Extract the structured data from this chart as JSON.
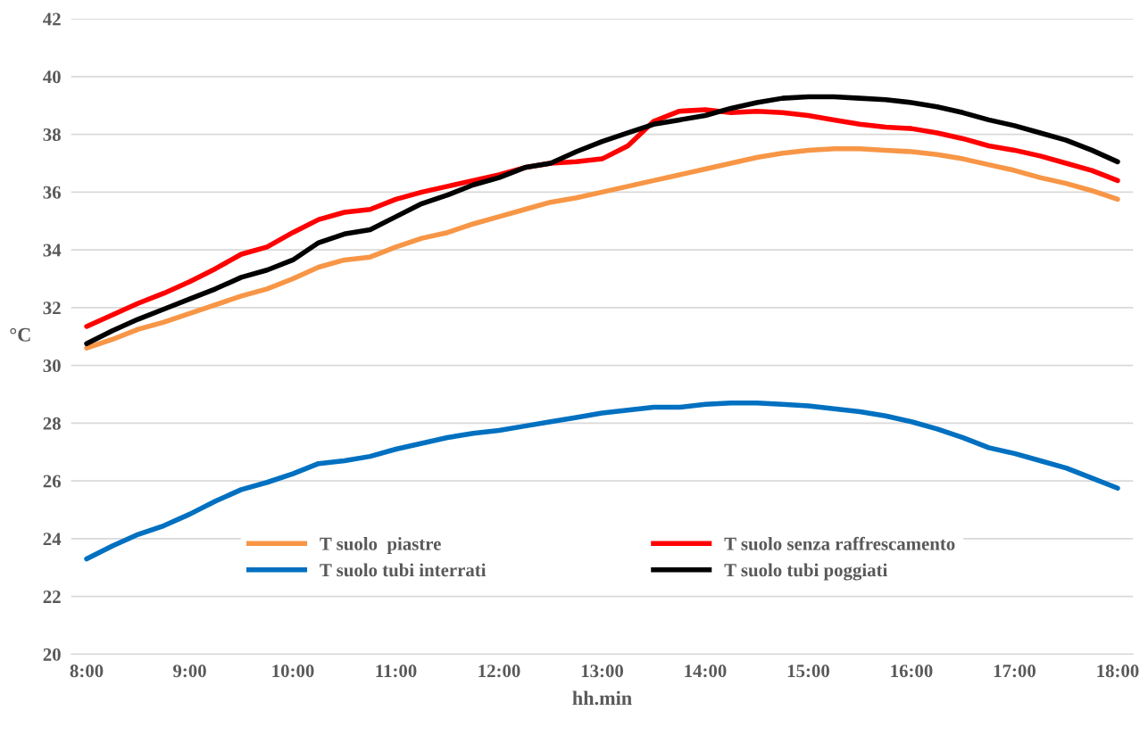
{
  "chart_data": {
    "type": "line",
    "xlabel": "hh.min",
    "ylabel": "°C",
    "x": [
      8,
      8.25,
      8.5,
      8.75,
      9,
      9.25,
      9.5,
      9.75,
      10,
      10.25,
      10.5,
      10.75,
      11,
      11.25,
      11.5,
      11.75,
      12,
      12.25,
      12.5,
      12.75,
      13,
      13.25,
      13.5,
      13.75,
      14,
      14.25,
      14.5,
      14.75,
      15,
      15.25,
      15.5,
      15.75,
      16,
      16.25,
      16.5,
      16.75,
      17,
      17.25,
      17.5,
      17.75,
      18
    ],
    "series": [
      {
        "name": "T suolo  piastre",
        "color": "#f79646",
        "values": [
          30.6,
          30.9,
          31.25,
          31.5,
          31.8,
          32.1,
          32.4,
          32.65,
          33.0,
          33.4,
          33.65,
          33.75,
          34.1,
          34.4,
          34.6,
          34.9,
          35.15,
          35.4,
          35.65,
          35.8,
          36.0,
          36.2,
          36.4,
          36.6,
          36.8,
          37.0,
          37.2,
          37.35,
          37.45,
          37.5,
          37.5,
          37.45,
          37.4,
          37.3,
          37.15,
          36.95,
          36.75,
          36.5,
          36.3,
          36.05,
          35.75
        ]
      },
      {
        "name": "T suolo tubi interrati",
        "color": "#0070c0",
        "values": [
          23.3,
          23.75,
          24.15,
          24.45,
          24.85,
          25.3,
          25.7,
          25.95,
          26.25,
          26.6,
          26.7,
          26.85,
          27.1,
          27.3,
          27.5,
          27.65,
          27.75,
          27.9,
          28.05,
          28.2,
          28.35,
          28.45,
          28.55,
          28.55,
          28.65,
          28.7,
          28.7,
          28.65,
          28.6,
          28.5,
          28.4,
          28.25,
          28.05,
          27.8,
          27.5,
          27.15,
          26.95,
          26.7,
          26.45,
          26.1,
          25.75
        ]
      },
      {
        "name": "T suolo senza raffrescamento",
        "color": "#ff0000",
        "values": [
          31.35,
          31.75,
          32.15,
          32.5,
          32.9,
          33.35,
          33.85,
          34.1,
          34.6,
          35.05,
          35.3,
          35.4,
          35.75,
          36.0,
          36.2,
          36.4,
          36.6,
          36.85,
          37.0,
          37.05,
          37.15,
          37.6,
          38.45,
          38.8,
          38.85,
          38.75,
          38.8,
          38.75,
          38.65,
          38.5,
          38.35,
          38.25,
          38.2,
          38.05,
          37.85,
          37.6,
          37.45,
          37.25,
          37.0,
          36.75,
          36.4
        ]
      },
      {
        "name": "T suolo tubi poggiati",
        "color": "#000000",
        "values": [
          30.75,
          31.2,
          31.6,
          31.95,
          32.3,
          32.65,
          33.05,
          33.3,
          33.65,
          34.25,
          34.55,
          34.7,
          35.15,
          35.6,
          35.9,
          36.25,
          36.5,
          36.85,
          37.0,
          37.4,
          37.75,
          38.05,
          38.35,
          38.5,
          38.65,
          38.9,
          39.1,
          39.25,
          39.3,
          39.3,
          39.25,
          39.2,
          39.1,
          38.95,
          38.75,
          38.5,
          38.3,
          38.05,
          37.8,
          37.45,
          37.05
        ]
      }
    ],
    "xlim": [
      7.85,
      18.15
    ],
    "xticks": [
      {
        "value": 8,
        "label": "8:00"
      },
      {
        "value": 9,
        "label": "9:00"
      },
      {
        "value": 10,
        "label": "10:00"
      },
      {
        "value": 11,
        "label": "11:00"
      },
      {
        "value": 12,
        "label": "12:00"
      },
      {
        "value": 13,
        "label": "13:00"
      },
      {
        "value": 14,
        "label": "14:00"
      },
      {
        "value": 15,
        "label": "15:00"
      },
      {
        "value": 16,
        "label": "16:00"
      },
      {
        "value": 17,
        "label": "17:00"
      },
      {
        "value": 18,
        "label": "18:00"
      }
    ],
    "ylim": [
      20,
      42
    ],
    "yticks": [
      20,
      22,
      24,
      26,
      28,
      30,
      32,
      34,
      36,
      38,
      40,
      42
    ],
    "grid": "y",
    "legend": "bottom",
    "marker": "none",
    "line_style": "solid"
  }
}
